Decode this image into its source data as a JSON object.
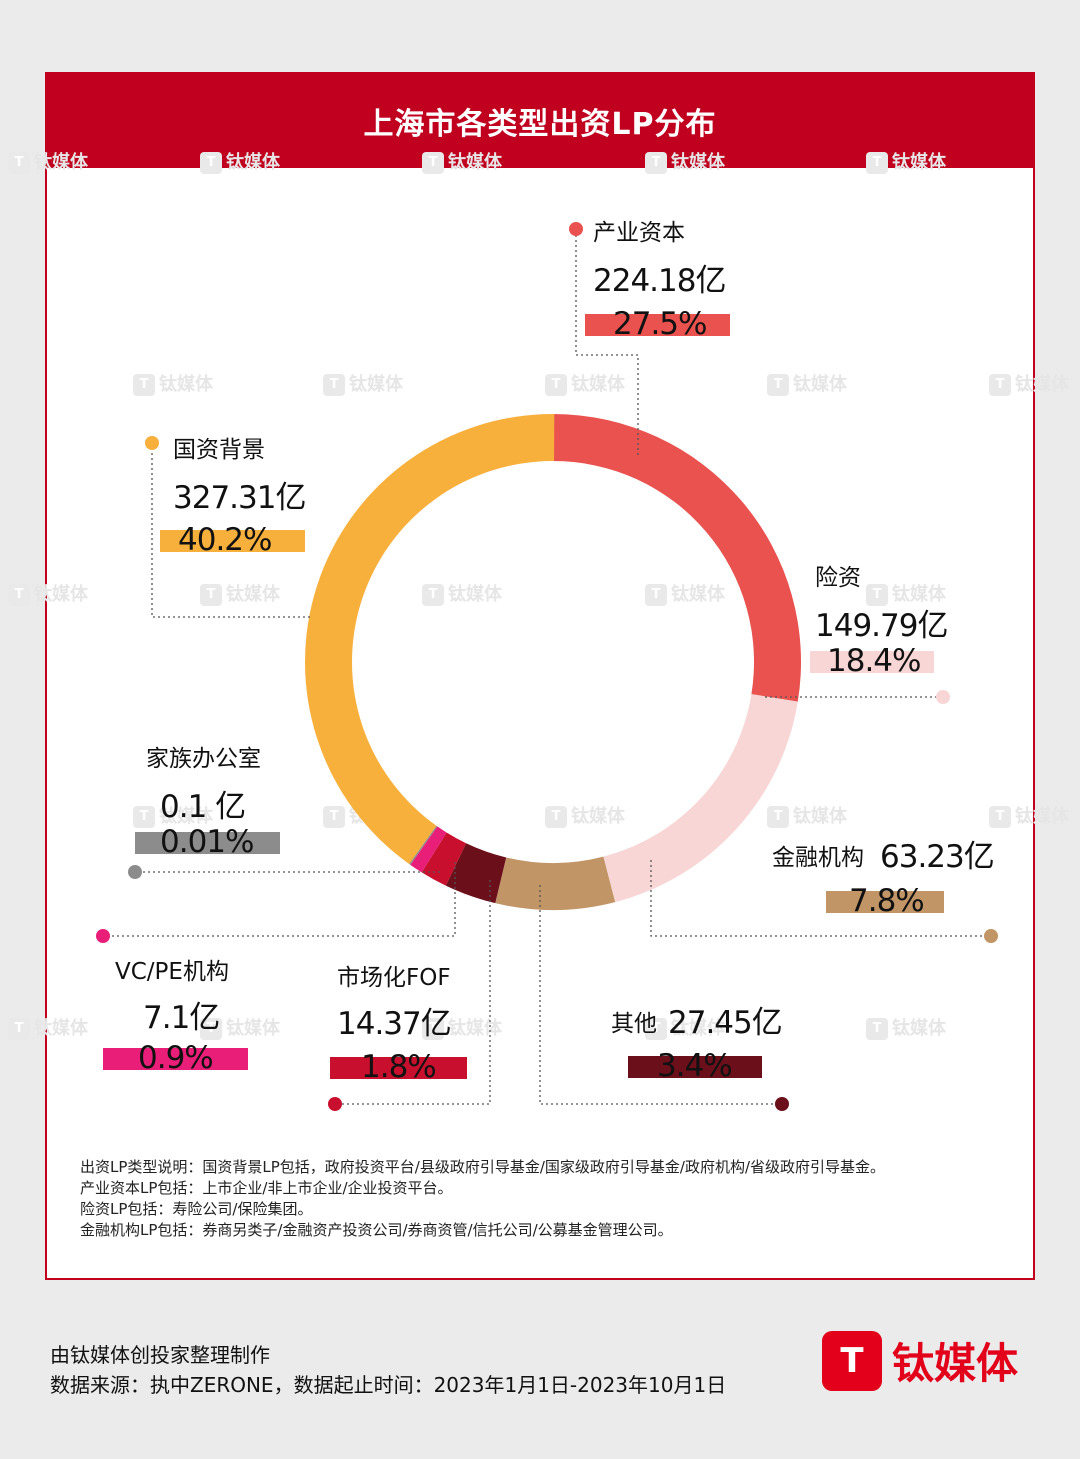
{
  "header": {
    "title": "上海市各类型出资LP分布"
  },
  "watermark": {
    "text": "钛媒体",
    "logo_glyph": "T"
  },
  "colors": {
    "brand_red": "#c1001f",
    "产业资本": "#e9524f",
    "险资": "#f8d6d6",
    "金融机构": "#c19566",
    "其他": "#6b0f1a",
    "市场化FOF": "#c8102e",
    "VC/PE机构": "#e91e78",
    "家族办公室": "#8c8c8c",
    "国资背景": "#f8b03c"
  },
  "chart_data": {
    "type": "pie",
    "donut": true,
    "title": "上海市各类型出资LP分布",
    "unit": "亿",
    "slices": [
      {
        "name": "产业资本",
        "value": 224.18,
        "value_label": "224.18亿",
        "percent": 27.5,
        "percent_label": "27.5%"
      },
      {
        "name": "险资",
        "value": 149.79,
        "value_label": "149.79亿",
        "percent": 18.4,
        "percent_label": "18.4%"
      },
      {
        "name": "金融机构",
        "value": 63.23,
        "value_label": "63.23亿",
        "percent": 7.8,
        "percent_label": "7.8%"
      },
      {
        "name": "其他",
        "value": 27.45,
        "value_label": "27.45亿",
        "percent": 3.4,
        "percent_label": "3.4%"
      },
      {
        "name": "市场化FOF",
        "value": 14.37,
        "value_label": "14.37亿",
        "percent": 1.8,
        "percent_label": "1.8%"
      },
      {
        "name": "VC/PE机构",
        "value": 7.1,
        "value_label": "7.1亿",
        "percent": 0.9,
        "percent_label": "0.9%"
      },
      {
        "name": "家族办公室",
        "value": 0.1,
        "value_label": "0.1 亿",
        "percent": 0.01,
        "percent_label": "0.01%"
      },
      {
        "name": "国资背景",
        "value": 327.31,
        "value_label": "327.31亿",
        "percent": 40.2,
        "percent_label": "40.2%"
      }
    ]
  },
  "notes": [
    "出资LP类型说明：国资背景LP包括，政府投资平台/县级政府引导基金/国家级政府引导基金/政府机构/省级政府引导基金。",
    "产业资本LP包括：上市企业/非上市企业/企业投资平台。",
    "险资LP包括：寿险公司/保险集团。",
    "金融机构LP包括：券商另类子/金融资产投资公司/券商资管/信托公司/公募基金管理公司。"
  ],
  "footer": {
    "line1": "由钛媒体创投家整理制作",
    "line2": "数据来源：执中ZERONE，数据起止时间：2023年1月1日-2023年10月1日"
  },
  "brand": {
    "logo_glyph": "T",
    "name": "钛媒体"
  }
}
